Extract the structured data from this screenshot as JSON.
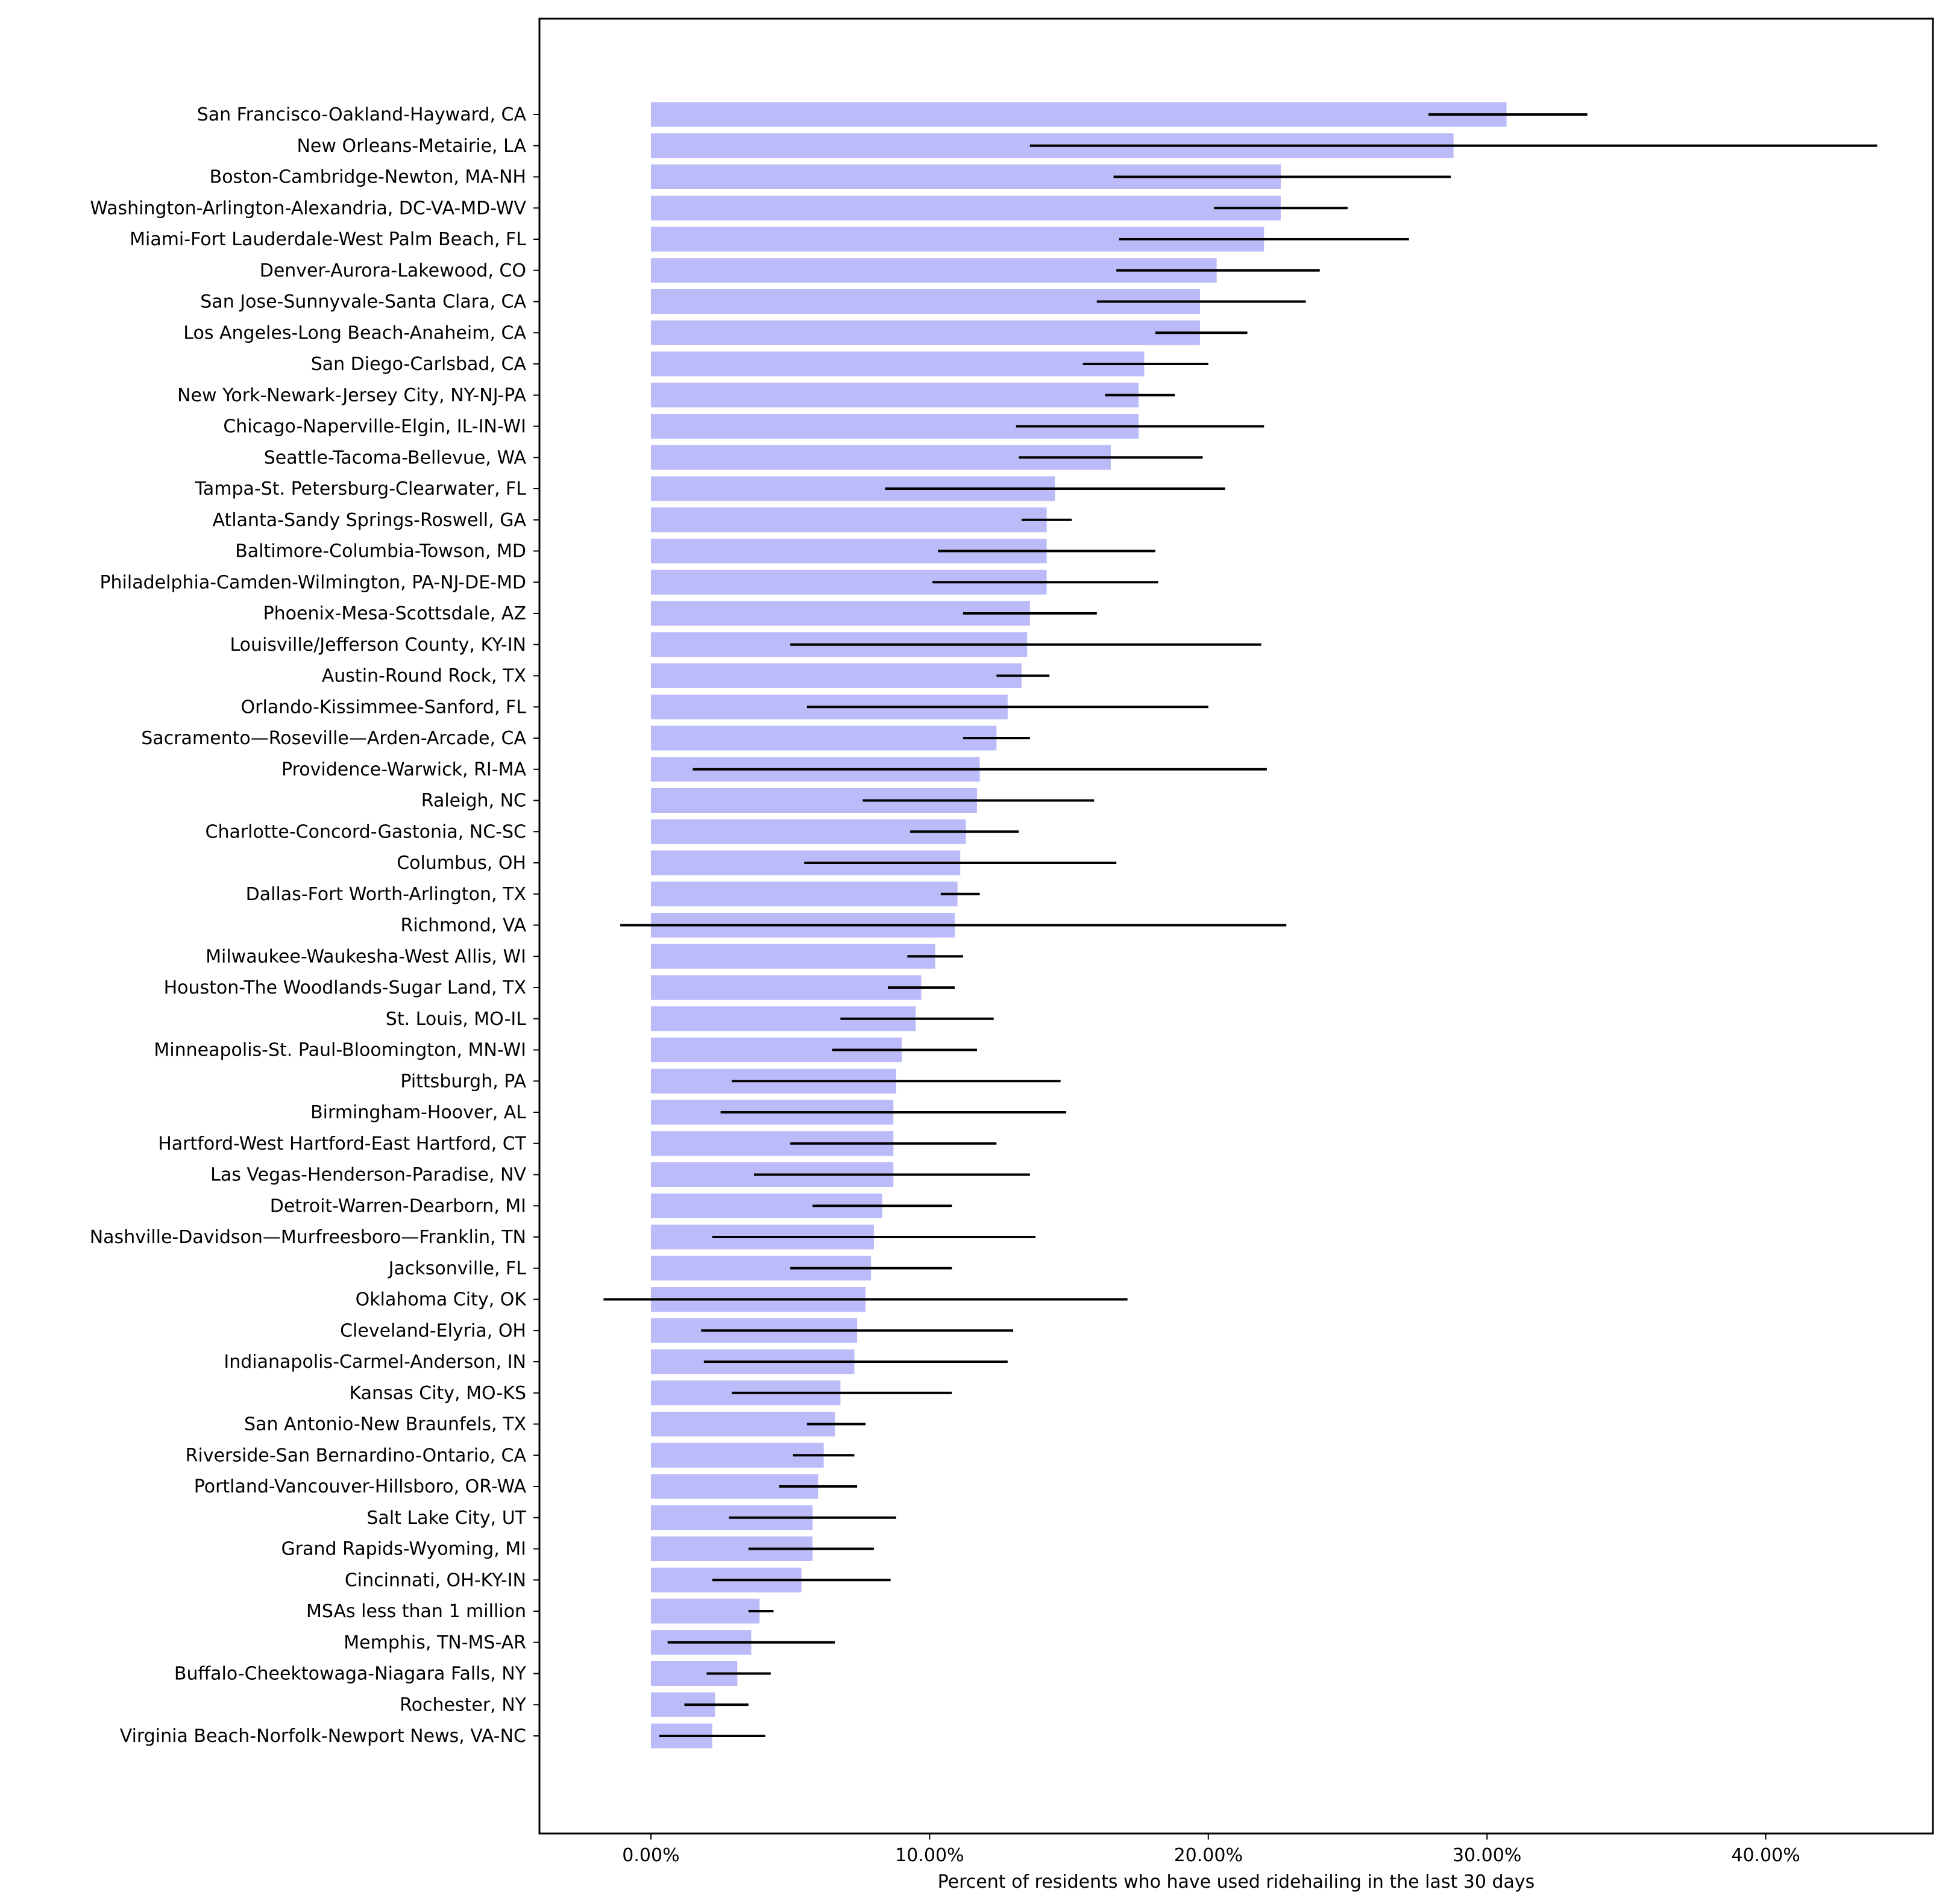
{
  "chart_data": {
    "type": "bar",
    "orientation": "horizontal",
    "title": "",
    "xlabel": "Percent of residents who have used ridehailing in the last 30 days",
    "ylabel": "",
    "xlim": [
      -4.0,
      46.0
    ],
    "xticks": [
      0,
      10,
      20,
      30,
      40
    ],
    "xtick_labels": [
      "0.00%",
      "10.00%",
      "20.00%",
      "30.00%",
      "40.00%"
    ],
    "grid": false,
    "legend": "none",
    "bar_color": "#bbbbfa",
    "errorbar_color": "#000000",
    "categories": [
      "San Francisco-Oakland-Hayward, CA",
      "New Orleans-Metairie, LA",
      "Boston-Cambridge-Newton, MA-NH",
      "Washington-Arlington-Alexandria, DC-VA-MD-WV",
      "Miami-Fort Lauderdale-West Palm Beach, FL",
      "Denver-Aurora-Lakewood, CO",
      "San Jose-Sunnyvale-Santa Clara, CA",
      "Los Angeles-Long Beach-Anaheim, CA",
      "San Diego-Carlsbad, CA",
      "New York-Newark-Jersey City, NY-NJ-PA",
      "Chicago-Naperville-Elgin, IL-IN-WI",
      "Seattle-Tacoma-Bellevue, WA",
      "Tampa-St. Petersburg-Clearwater, FL",
      "Atlanta-Sandy Springs-Roswell, GA",
      "Baltimore-Columbia-Towson, MD",
      "Philadelphia-Camden-Wilmington, PA-NJ-DE-MD",
      "Phoenix-Mesa-Scottsdale, AZ",
      "Louisville/Jefferson County, KY-IN",
      "Austin-Round Rock, TX",
      "Orlando-Kissimmee-Sanford, FL",
      "Sacramento—Roseville—Arden-Arcade, CA",
      "Providence-Warwick, RI-MA",
      "Raleigh, NC",
      "Charlotte-Concord-Gastonia, NC-SC",
      "Columbus, OH",
      "Dallas-Fort Worth-Arlington, TX",
      "Richmond, VA",
      "Milwaukee-Waukesha-West Allis, WI",
      "Houston-The Woodlands-Sugar Land, TX",
      "St. Louis, MO-IL",
      "Minneapolis-St. Paul-Bloomington, MN-WI",
      "Pittsburgh, PA",
      "Birmingham-Hoover, AL",
      "Hartford-West Hartford-East Hartford, CT",
      "Las Vegas-Henderson-Paradise, NV",
      "Detroit-Warren-Dearborn, MI",
      "Nashville-Davidson—Murfreesboro—Franklin, TN",
      "Jacksonville, FL",
      "Oklahoma City, OK",
      "Cleveland-Elyria, OH",
      "Indianapolis-Carmel-Anderson, IN",
      "Kansas City, MO-KS",
      "San Antonio-New Braunfels, TX",
      "Riverside-San Bernardino-Ontario, CA",
      "Portland-Vancouver-Hillsboro, OR-WA",
      "Salt Lake City, UT",
      "Grand Rapids-Wyoming, MI",
      "Cincinnati, OH-KY-IN",
      "MSAs less than 1 million",
      "Memphis, TN-MS-AR",
      "Buffalo-Cheektowaga-Niagara Falls, NY",
      "Rochester, NY",
      "Virginia Beach-Norfolk-Newport News, VA-NC"
    ],
    "values": [
      30.7,
      28.8,
      22.6,
      22.6,
      22.0,
      20.3,
      19.7,
      19.7,
      17.7,
      17.5,
      17.5,
      16.5,
      14.5,
      14.2,
      14.2,
      14.2,
      13.6,
      13.5,
      13.3,
      12.8,
      12.4,
      11.8,
      11.7,
      11.3,
      11.1,
      11.0,
      10.9,
      10.2,
      9.7,
      9.5,
      9.0,
      8.8,
      8.7,
      8.7,
      8.7,
      8.3,
      8.0,
      7.9,
      7.7,
      7.4,
      7.3,
      6.8,
      6.6,
      6.2,
      6.0,
      5.8,
      5.8,
      5.4,
      3.9,
      3.6,
      3.1,
      2.3,
      2.2
    ],
    "error_low": [
      27.9,
      13.6,
      16.6,
      20.2,
      16.8,
      16.7,
      16.0,
      18.1,
      15.5,
      16.3,
      13.1,
      13.2,
      8.4,
      13.3,
      10.3,
      10.1,
      11.2,
      5.0,
      12.4,
      5.6,
      11.2,
      1.5,
      7.6,
      9.3,
      5.5,
      10.4,
      -1.1,
      9.2,
      8.5,
      6.8,
      6.5,
      2.9,
      2.5,
      5.0,
      3.7,
      5.8,
      2.2,
      5.0,
      -1.7,
      1.8,
      1.9,
      2.9,
      5.6,
      5.1,
      4.6,
      2.8,
      3.5,
      2.2,
      3.5,
      0.6,
      2.0,
      1.2,
      0.3
    ],
    "error_high": [
      33.6,
      44.0,
      28.7,
      25.0,
      27.2,
      24.0,
      23.5,
      21.4,
      20.0,
      18.8,
      22.0,
      19.8,
      20.6,
      15.1,
      18.1,
      18.2,
      16.0,
      21.9,
      14.3,
      20.0,
      13.6,
      22.1,
      15.9,
      13.2,
      16.7,
      11.8,
      22.8,
      11.2,
      10.9,
      12.3,
      11.7,
      14.7,
      14.9,
      12.4,
      13.6,
      10.8,
      13.8,
      10.8,
      17.1,
      13.0,
      12.8,
      10.8,
      7.7,
      7.3,
      7.4,
      8.8,
      8.0,
      8.6,
      4.4,
      6.6,
      4.3,
      3.5,
      4.1
    ]
  }
}
